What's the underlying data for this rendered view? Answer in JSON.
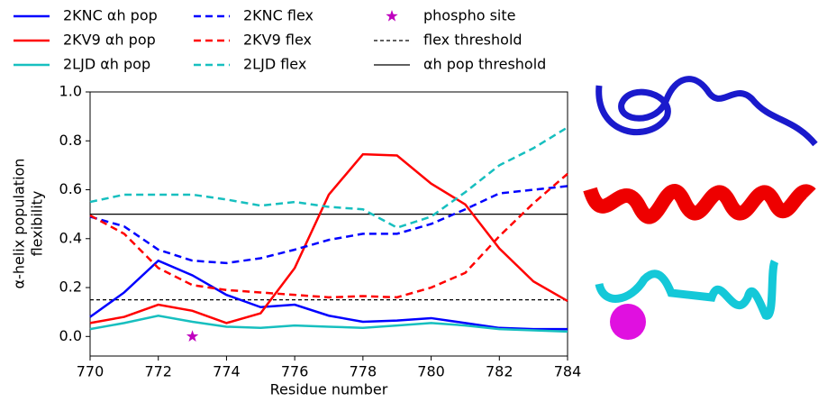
{
  "chart_data": {
    "type": "line",
    "x": [
      770,
      771,
      772,
      773,
      774,
      775,
      776,
      777,
      778,
      779,
      780,
      781,
      782,
      783,
      784
    ],
    "series": [
      {
        "name": "2KNC αh pop",
        "color": "#0000ff",
        "style": "solid",
        "values": [
          0.08,
          0.18,
          0.31,
          0.25,
          0.17,
          0.12,
          0.13,
          0.085,
          0.06,
          0.065,
          0.075,
          0.055,
          0.035,
          0.03,
          0.03
        ]
      },
      {
        "name": "2KV9 αh pop",
        "color": "#ff0000",
        "style": "solid",
        "values": [
          0.055,
          0.08,
          0.13,
          0.105,
          0.055,
          0.095,
          0.28,
          0.58,
          0.745,
          0.74,
          0.625,
          0.54,
          0.36,
          0.225,
          0.145
        ]
      },
      {
        "name": "2LJD αh pop",
        "color": "#17bfbf",
        "style": "solid",
        "values": [
          0.03,
          0.055,
          0.085,
          0.06,
          0.04,
          0.035,
          0.045,
          0.04,
          0.035,
          0.045,
          0.055,
          0.045,
          0.03,
          0.025,
          0.02
        ]
      },
      {
        "name": "2KNC flex",
        "color": "#0000ff",
        "style": "dashed",
        "values": [
          0.49,
          0.45,
          0.355,
          0.31,
          0.3,
          0.32,
          0.355,
          0.395,
          0.42,
          0.42,
          0.46,
          0.52,
          0.585,
          0.6,
          0.615
        ]
      },
      {
        "name": "2KV9 flex",
        "color": "#ff0000",
        "style": "dashed",
        "values": [
          0.495,
          0.42,
          0.28,
          0.21,
          0.19,
          0.18,
          0.17,
          0.16,
          0.165,
          0.16,
          0.2,
          0.26,
          0.41,
          0.545,
          0.665
        ]
      },
      {
        "name": "2LJD flex",
        "color": "#17bfbf",
        "style": "dashed",
        "values": [
          0.55,
          0.58,
          0.58,
          0.58,
          0.56,
          0.535,
          0.55,
          0.53,
          0.52,
          0.445,
          0.49,
          0.59,
          0.7,
          0.77,
          0.855
        ]
      }
    ],
    "points": [
      {
        "name": "phospho site",
        "color": "#bf00bf",
        "marker": "star",
        "x": 773,
        "y": 0
      }
    ],
    "hlines": [
      {
        "name": "flex threshold",
        "value": 0.15,
        "color": "#000000",
        "style": "dashed"
      },
      {
        "name": "αh pop threshold",
        "value": 0.5,
        "color": "#000000",
        "style": "solid"
      }
    ],
    "xlabel": "Residue number",
    "ylabel": [
      "α-helix population",
      "flexibility"
    ],
    "xlim": [
      770,
      784
    ],
    "ylim": [
      -0.08,
      1.0
    ],
    "xticks": [
      770,
      772,
      774,
      776,
      778,
      780,
      782,
      784
    ],
    "yticks": [
      {
        "value": 0,
        "label": "0.0"
      },
      0.2,
      0.4,
      0.6,
      0.8,
      {
        "value": 1,
        "label": "1.0"
      }
    ]
  }
}
